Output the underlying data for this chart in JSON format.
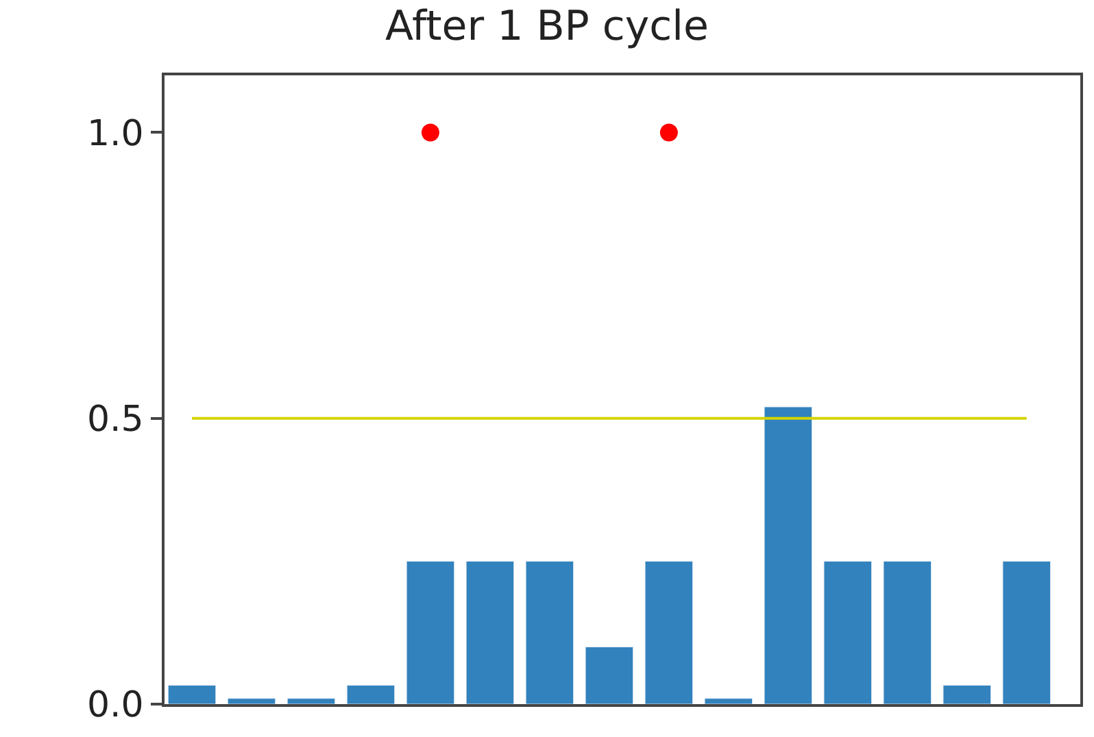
{
  "chart_data": {
    "type": "bar",
    "title": "After 1 BP cycle",
    "categories": [
      null,
      null,
      null,
      null,
      null,
      null,
      null,
      null,
      null,
      null,
      null,
      null,
      null,
      null,
      null
    ],
    "series": [
      {
        "color": "#3182bd",
        "values": [
          0.033,
          0.01,
          0.01,
          0.033,
          0.25,
          0.25,
          0.25,
          0.1,
          0.25,
          0.01,
          0.52,
          0.25,
          0.25,
          0.033,
          0.25
        ]
      },
      {
        "type": "line",
        "color": "#d4d400",
        "values": [
          0.5,
          0.5,
          0.5,
          0.5,
          0.5,
          0.5,
          0.5,
          0.5,
          0.5,
          0.5,
          0.5,
          0.5,
          0.5,
          0.5,
          0.5
        ]
      },
      {
        "type": "scatter",
        "color": "#ff0000",
        "marker": "circle",
        "values": [
          null,
          null,
          null,
          null,
          1.0,
          null,
          null,
          null,
          1.0,
          null,
          null,
          null,
          null,
          null,
          null
        ]
      }
    ],
    "ylim": [
      0,
      1.1
    ],
    "yticks": [
      {
        "value": 0,
        "label": "0.0"
      },
      {
        "value": 0.5,
        "label": "0.5"
      },
      {
        "value": 1.0,
        "label": "1.0"
      }
    ],
    "tick_labels": "y",
    "legend": false
  }
}
